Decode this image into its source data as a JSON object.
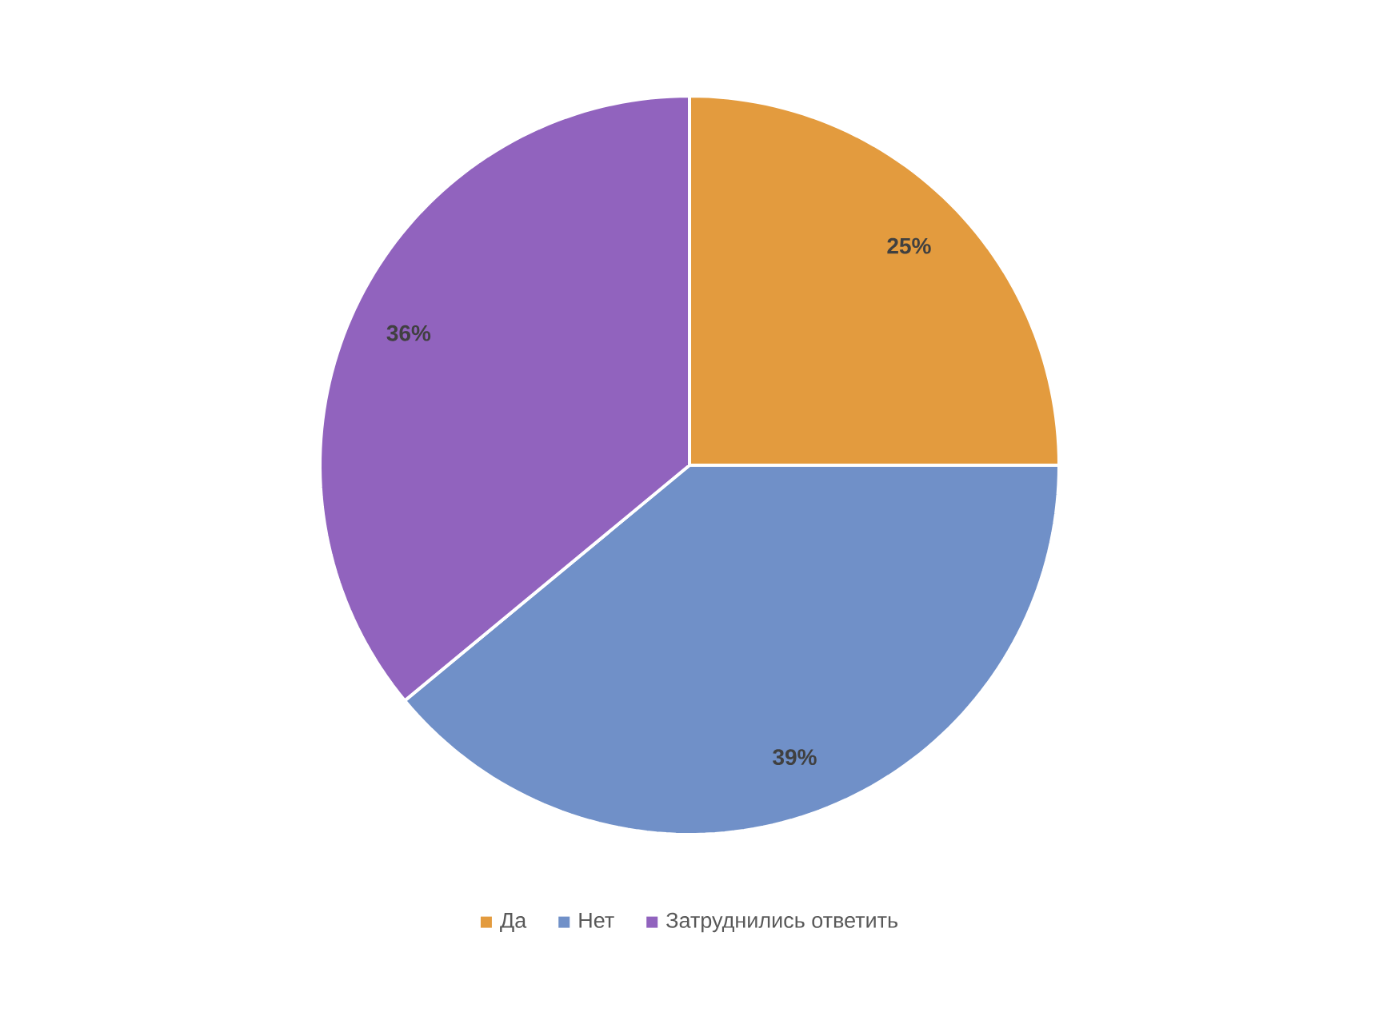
{
  "chart_data": {
    "type": "pie",
    "categories": [
      "Да",
      "Нет",
      "Затруднились ответить"
    ],
    "values": [
      25,
      39,
      36
    ],
    "colors": [
      "#e39b3e",
      "#7090c8",
      "#9163be"
    ],
    "value_labels": [
      "25%",
      "39%",
      "36%"
    ],
    "legend": "bottom"
  }
}
